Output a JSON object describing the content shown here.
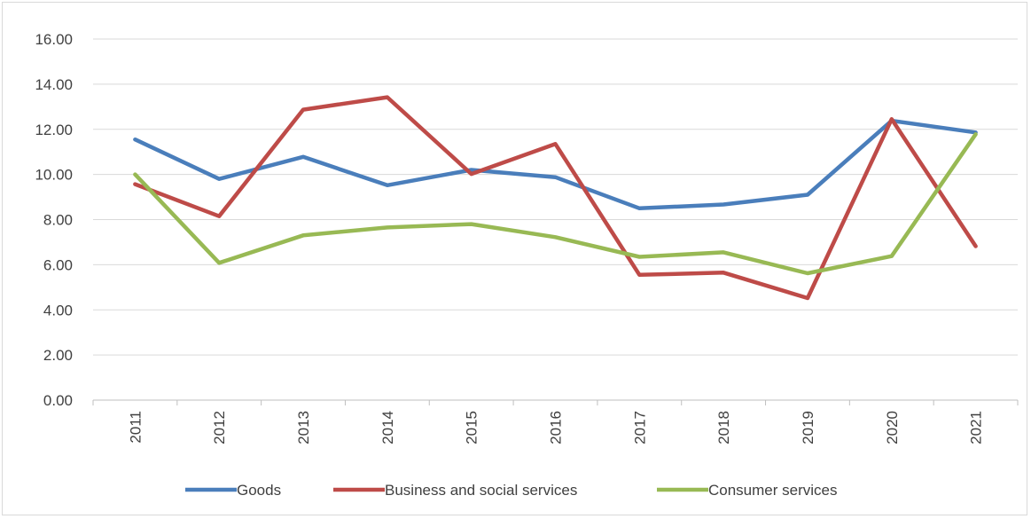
{
  "chart_data": {
    "type": "line",
    "title": "",
    "xlabel": "",
    "ylabel": "",
    "categories": [
      "2011",
      "2012",
      "2013",
      "2014",
      "2015",
      "2016",
      "2017",
      "2018",
      "2019",
      "2020",
      "2021"
    ],
    "ylim": [
      0,
      16
    ],
    "ytick_step": 2,
    "ytick_labels": [
      "0.00",
      "2.00",
      "4.00",
      "6.00",
      "8.00",
      "10.00",
      "12.00",
      "14.00",
      "16.00"
    ],
    "grid": true,
    "legend_position": "bottom",
    "series": [
      {
        "name": "Goods",
        "color": "#4a7ebb",
        "values": [
          11.55,
          9.8,
          10.78,
          9.52,
          10.2,
          9.88,
          8.5,
          8.67,
          9.1,
          12.38,
          11.86
        ]
      },
      {
        "name": "Business and social services",
        "color": "#be4b48",
        "values": [
          9.57,
          8.15,
          12.87,
          13.42,
          10.02,
          11.35,
          5.55,
          5.65,
          4.52,
          12.45,
          6.82
        ]
      },
      {
        "name": "Consumer services",
        "color": "#98b954",
        "values": [
          10.0,
          6.08,
          7.3,
          7.65,
          7.8,
          7.22,
          6.35,
          6.55,
          5.62,
          6.38,
          11.78
        ]
      }
    ]
  }
}
